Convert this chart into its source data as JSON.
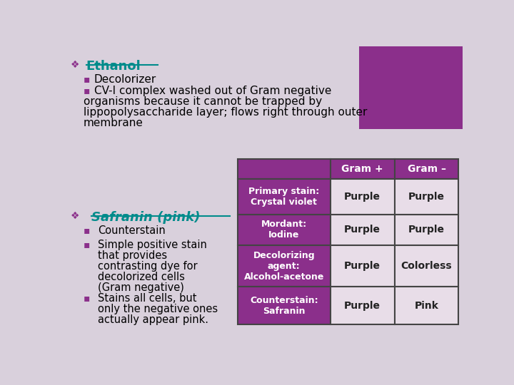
{
  "bg_color": "#d9d0dc",
  "purple_color": "#8B2F8B",
  "light_cell_color": "#e8dde8",
  "teal_color": "#008B8B",
  "text_color": "#000000",
  "white": "#ffffff",
  "dark_text": "#222222",
  "ethanol_text": "Ethanol",
  "bullet_char": "❖",
  "sub_bullet": "▪",
  "decolorizer": "Decolorizer",
  "cv_line1": "CV-I complex washed out of Gram negative",
  "cv_line2": "organisms because it cannot be trapped by",
  "cv_line3": "lippopolysaccharide layer; flows right through outer",
  "cv_line4": "membrane",
  "safranin_title": "Safranin (pink)",
  "safranin_b1": "Counterstain",
  "safranin_b2a": "Simple positive stain",
  "safranin_b2b": "that provides",
  "safranin_b2c": "contrasting dye for",
  "safranin_b2d": "decolorized cells",
  "safranin_b2e": "(Gram negative)",
  "safranin_b3a": "Stains all cells, but",
  "safranin_b3b": "only the negative ones",
  "safranin_b3c": "actually appear pink.",
  "table_headers": [
    "",
    "Gram +",
    "Gram –"
  ],
  "table_rows": [
    [
      "Primary stain:\nCrystal violet",
      "Purple",
      "Purple"
    ],
    [
      "Mordant:\nIodine",
      "Purple",
      "Purple"
    ],
    [
      "Decolorizing\nagent:\nAlcohol-acetone",
      "Purple",
      "Colorless"
    ],
    [
      "Counterstain:\nSafranin",
      "Purple",
      "Pink"
    ]
  ]
}
